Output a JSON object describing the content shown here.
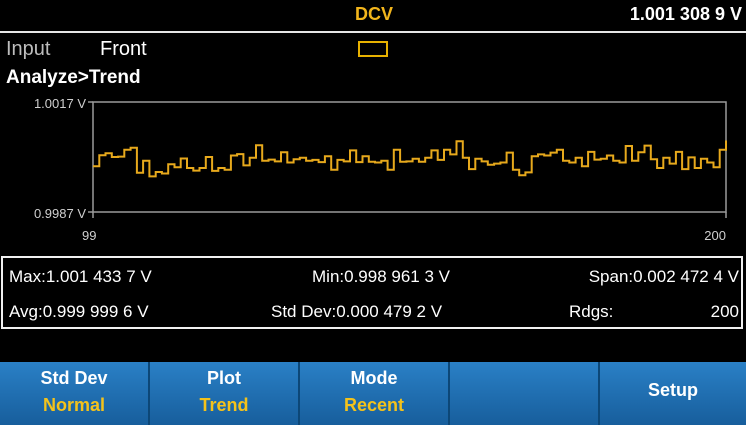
{
  "header": {
    "mode": "DCV",
    "reading": "1.001 308 9 V"
  },
  "info": {
    "input_label": "Input",
    "input_value": "Front",
    "path": "Analyze>Trend"
  },
  "chart_data": {
    "type": "line",
    "title": "",
    "xlabel": "",
    "ylabel": "",
    "xlim": [
      99,
      200
    ],
    "ylim": [
      0.9987,
      1.0017
    ],
    "x_tick_labels": [
      "99",
      "200"
    ],
    "y_tick_labels": [
      "1.0017 V",
      "0.9987 V"
    ],
    "line_color": "#e7a91c",
    "step": true,
    "x": [
      99,
      100,
      101,
      102,
      103,
      104,
      105,
      106,
      107,
      108,
      109,
      110,
      111,
      112,
      113,
      114,
      115,
      116,
      117,
      118,
      119,
      120,
      121,
      122,
      123,
      124,
      125,
      126,
      127,
      128,
      129,
      130,
      131,
      132,
      133,
      134,
      135,
      136,
      137,
      138,
      139,
      140,
      141,
      142,
      143,
      144,
      145,
      146,
      147,
      148,
      149,
      150,
      151,
      152,
      153,
      154,
      155,
      156,
      157,
      158,
      159,
      160,
      161,
      162,
      163,
      164,
      165,
      166,
      167,
      168,
      169,
      170,
      171,
      172,
      173,
      174,
      175,
      176,
      177,
      178,
      179,
      180,
      181,
      182,
      183,
      184,
      185,
      186,
      187,
      188,
      189,
      190,
      191,
      192,
      193,
      194,
      195,
      196,
      197,
      198,
      199,
      200
    ],
    "values": [
      0.99995,
      1.00025,
      1.0003,
      1.0002,
      1.00021,
      1.0004,
      1.00045,
      0.99977,
      1.0001,
      0.99967,
      0.99979,
      0.99975,
      1.0,
      0.99992,
      1.00016,
      0.9999,
      0.99983,
      0.9999,
      1.0002,
      0.99982,
      0.9999,
      0.99985,
      1.00024,
      1.00028,
      0.99997,
      1.00018,
      1.00052,
      1.0001,
      1.00013,
      1.00008,
      1.00033,
      1.00005,
      1.00014,
      1.00018,
      1.0001,
      1.00012,
      1.00006,
      1.00022,
      0.99985,
      1.00012,
      1.00008,
      1.00038,
      1.00006,
      1.00022,
      1.00007,
      1.00005,
      1.0001,
      0.99985,
      1.0004,
      1.00007,
      1.00008,
      1.00015,
      1.00007,
      1.00018,
      1.00038,
      1.00012,
      1.0004,
      1.00027,
      1.00063,
      1.00018,
      0.99987,
      1.00015,
      1.00008,
      0.99999,
      1.00002,
      1.00005,
      1.00032,
      0.99985,
      0.9997,
      0.99978,
      1.00022,
      1.00027,
      1.00024,
      1.00032,
      1.0004,
      1.0001,
      1.00005,
      1.00018,
      0.99995,
      1.00034,
      1.00013,
      1.00015,
      1.00024,
      1.0001,
      1.00005,
      1.0005,
      1.0001,
      1.00033,
      1.00051,
      1.00014,
      0.9999,
      1.00018,
      1.00002,
      1.00034,
      0.99987,
      1.00019,
      0.9999,
      1.00015,
      1.00005,
      0.99992,
      1.0004,
      1.00065
    ]
  },
  "stats": {
    "max": "Max:1.001 433 7 V",
    "min": "Min:0.998 961 3 V",
    "span": "Span:0.002 472 4 V",
    "avg": "Avg:0.999 999 6 V",
    "std_dev": "Std Dev:0.000 479 2 V",
    "rdgs_label": "Rdgs:",
    "rdgs_value": "200"
  },
  "softkeys": [
    {
      "line1": "Std Dev",
      "line2": "Normal"
    },
    {
      "line1": "Plot",
      "line2": "Trend"
    },
    {
      "line1": "Mode",
      "line2": "Recent"
    },
    {
      "line1": "",
      "line2": ""
    },
    {
      "line1": "Setup",
      "line2": ""
    }
  ],
  "colors": {
    "accent": "#f2b51c",
    "softkey_bg": "#1e6fb4"
  }
}
